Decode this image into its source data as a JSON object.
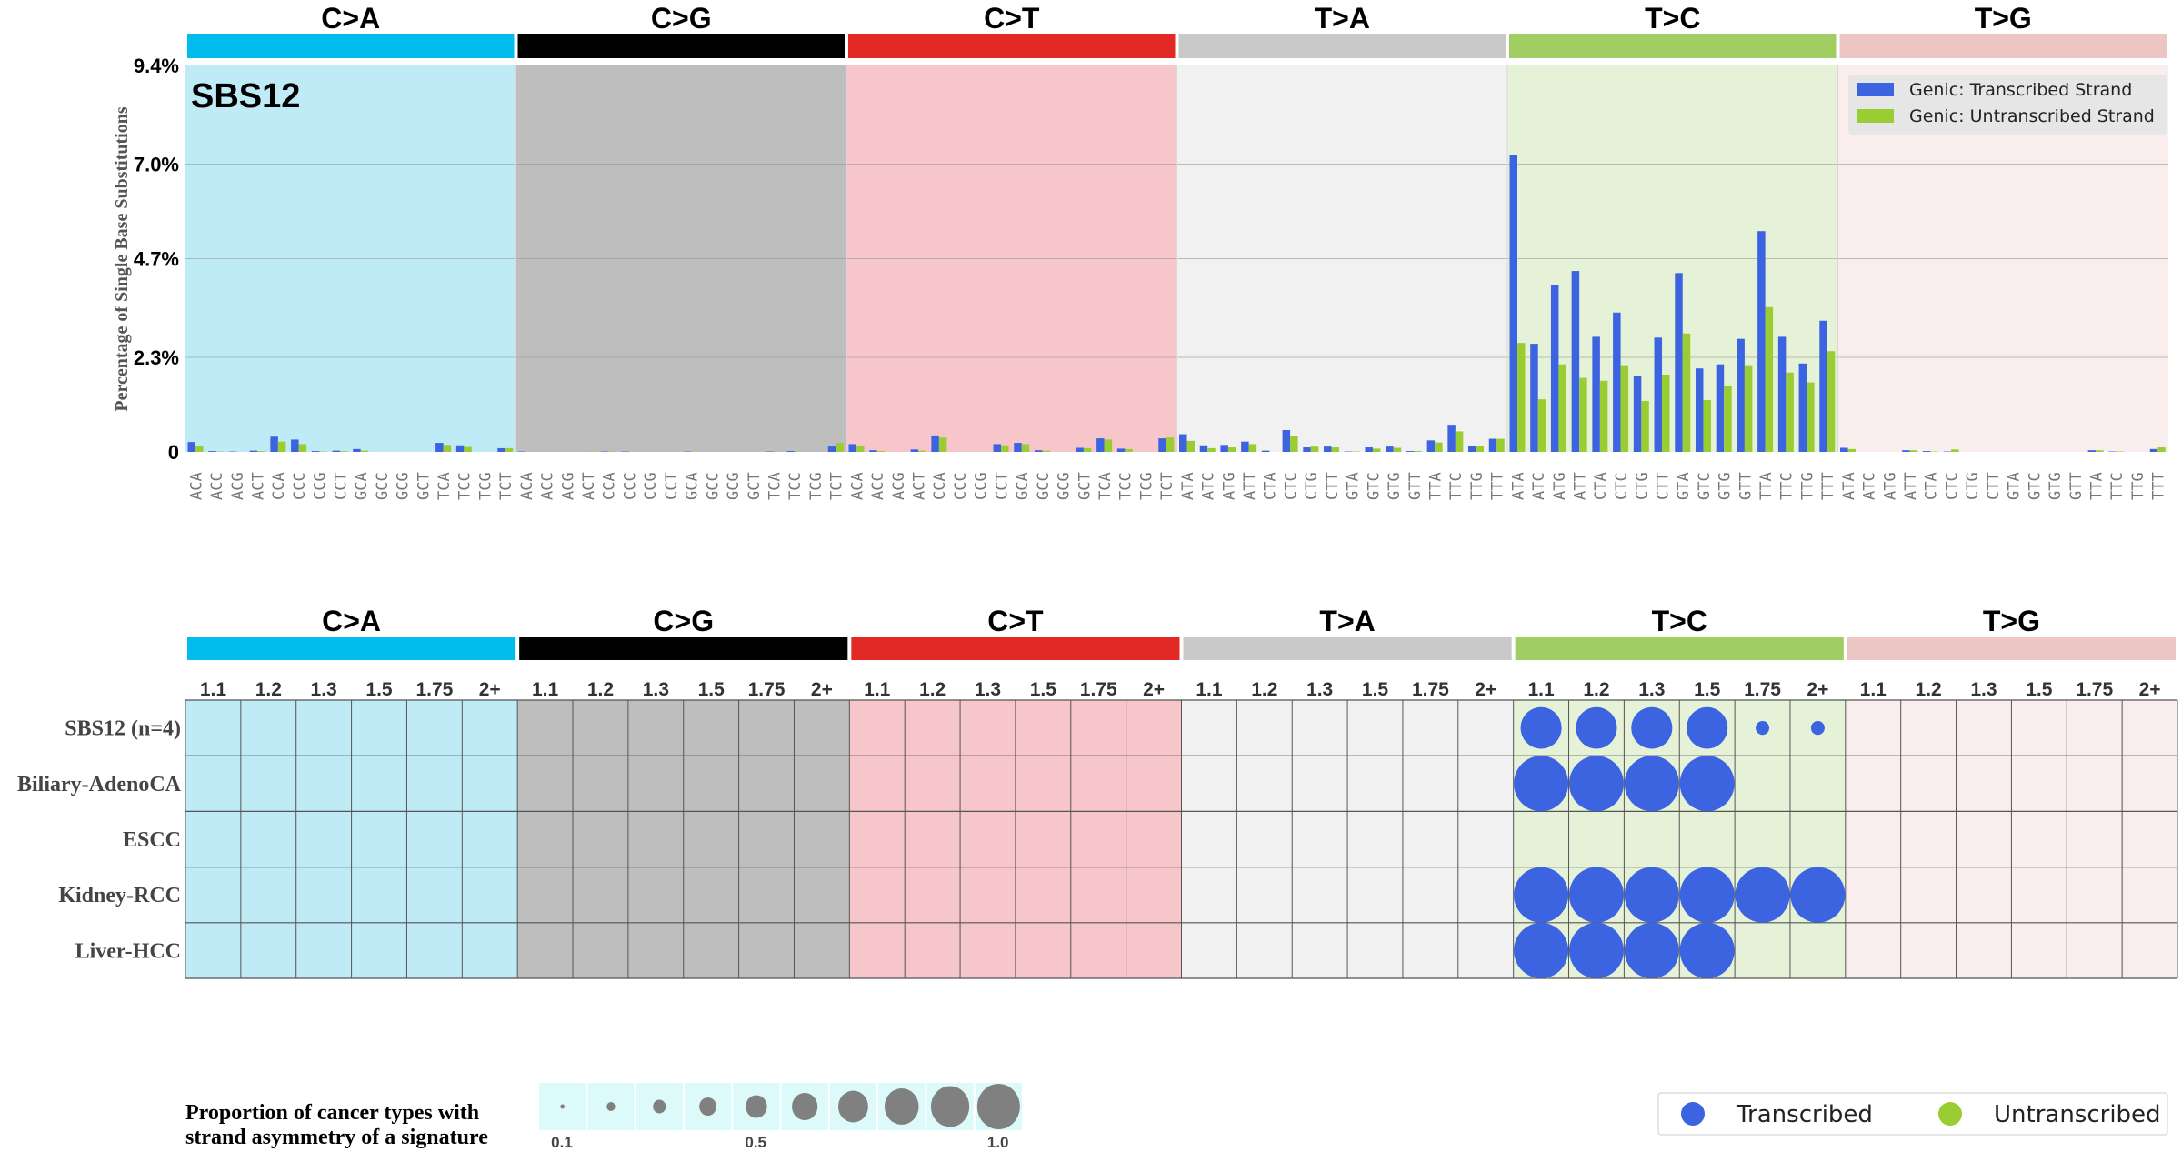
{
  "chart_data": [
    {
      "type": "bar",
      "signature_label": "SBS12",
      "ylabel": "Percentage of Single Base Substitutions",
      "yticks": [
        "0",
        "2.3%",
        "4.7%",
        "7.0%",
        "9.4%"
      ],
      "ytick_values": [
        0,
        2.3,
        4.7,
        7.0,
        9.4
      ],
      "ylim": [
        0,
        9.4
      ],
      "grid": true,
      "legend_placement": "top-right",
      "series": [
        {
          "name": "Genic: Transcribed Strand",
          "key": "transcribed",
          "color": "#3C64E0"
        },
        {
          "name": "Genic: Untranscribed Strand",
          "key": "untranscribed",
          "color": "#9ACD32"
        }
      ],
      "mutation_types": [
        {
          "name": "C>A",
          "color": "#03BCEE",
          "bg": "#BFEBF7",
          "mid_color": "#03BCEE",
          "contexts": [
            "ACA",
            "ACC",
            "ACG",
            "ACT",
            "CCA",
            "CCC",
            "CCG",
            "CCT",
            "GCA",
            "GCC",
            "GCG",
            "GCT",
            "TCA",
            "TCC",
            "TCG",
            "TCT"
          ],
          "transcribed": [
            0.24,
            0.02,
            0.01,
            0.03,
            0.37,
            0.3,
            0.02,
            0.03,
            0.07,
            0,
            0,
            0,
            0.22,
            0.16,
            0,
            0.09
          ],
          "untranscribed": [
            0.15,
            0.01,
            0,
            0.02,
            0.25,
            0.19,
            0.01,
            0.02,
            0.03,
            0,
            0,
            0,
            0.17,
            0.12,
            0,
            0.09
          ]
        },
        {
          "name": "C>G",
          "color": "#010101",
          "bg": "#BEBEBE",
          "mid_color": "#010101",
          "contexts": [
            "ACA",
            "ACC",
            "ACG",
            "ACT",
            "CCA",
            "CCC",
            "CCG",
            "CCT",
            "GCA",
            "GCC",
            "GCG",
            "GCT",
            "TCA",
            "TCC",
            "TCG",
            "TCT"
          ],
          "transcribed": [
            0.01,
            0,
            0,
            0,
            0.01,
            0.01,
            0,
            0,
            0.01,
            0,
            0,
            0,
            0.01,
            0.02,
            0,
            0.13
          ],
          "untranscribed": [
            0,
            0,
            0,
            0.01,
            0.01,
            0,
            0,
            0,
            0.01,
            0,
            0,
            0,
            0,
            0.01,
            0,
            0.22
          ]
        },
        {
          "name": "C>T",
          "color": "#E32926",
          "bg": "#F7C6CA",
          "mid_color": "#E32926",
          "contexts": [
            "ACA",
            "ACC",
            "ACG",
            "ACT",
            "CCA",
            "CCC",
            "CCG",
            "CCT",
            "GCA",
            "GCC",
            "GCG",
            "GCT",
            "TCA",
            "TCC",
            "TCG",
            "TCT"
          ],
          "transcribed": [
            0.19,
            0.04,
            0,
            0.06,
            0.4,
            0,
            0,
            0.19,
            0.22,
            0.04,
            0,
            0.1,
            0.33,
            0.08,
            0,
            0.33
          ],
          "untranscribed": [
            0.14,
            0.02,
            0,
            0.03,
            0.35,
            0,
            0,
            0.16,
            0.19,
            0.03,
            0,
            0.09,
            0.3,
            0.07,
            0,
            0.35
          ]
        },
        {
          "name": "T>A",
          "color": "#CAC9C9",
          "bg": "#F1F1F1",
          "mid_color": "#BBBBBB",
          "contexts": [
            "ATA",
            "ATC",
            "ATG",
            "ATT",
            "CTA",
            "CTC",
            "CTG",
            "CTT",
            "GTA",
            "GTC",
            "GTG",
            "GTT",
            "TTA",
            "TTC",
            "TTG",
            "TTT"
          ],
          "transcribed": [
            0.43,
            0.16,
            0.17,
            0.25,
            0.03,
            0.53,
            0.11,
            0.13,
            0.01,
            0.11,
            0.13,
            0.02,
            0.28,
            0.66,
            0.14,
            0.32
          ],
          "untranscribed": [
            0.27,
            0.09,
            0.11,
            0.19,
            0,
            0.39,
            0.13,
            0.11,
            0.01,
            0.08,
            0.1,
            0.02,
            0.23,
            0.5,
            0.15,
            0.32
          ]
        },
        {
          "name": "T>C",
          "color": "#A1CE63",
          "bg": "#E6F2D8",
          "mid_color": "#8DC63F",
          "contexts": [
            "ATA",
            "ATC",
            "ATG",
            "ATT",
            "CTA",
            "CTC",
            "CTG",
            "CTT",
            "GTA",
            "GTC",
            "GTG",
            "GTT",
            "TTA",
            "TTC",
            "TTG",
            "TTT"
          ],
          "transcribed": [
            7.21,
            2.63,
            4.07,
            4.4,
            2.8,
            3.39,
            1.84,
            2.78,
            4.35,
            2.03,
            2.13,
            2.75,
            5.37,
            2.8,
            2.15,
            3.19
          ],
          "untranscribed": [
            2.65,
            1.28,
            2.13,
            1.8,
            1.73,
            2.11,
            1.24,
            1.88,
            2.88,
            1.26,
            1.6,
            2.11,
            3.52,
            1.93,
            1.69,
            2.45
          ]
        },
        {
          "name": "T>G",
          "color": "#EBC6C4",
          "bg": "#F9EEED",
          "mid_color": "#E5B8B5",
          "contexts": [
            "ATA",
            "ATC",
            "ATG",
            "ATT",
            "CTA",
            "CTC",
            "CTG",
            "CTT",
            "GTA",
            "GTC",
            "GTG",
            "GTT",
            "TTA",
            "TTC",
            "TTG",
            "TTT"
          ],
          "transcribed": [
            0.1,
            0,
            0,
            0.04,
            0.02,
            0.01,
            0,
            0,
            0,
            0,
            0,
            0,
            0.04,
            0.01,
            0,
            0.07
          ],
          "untranscribed": [
            0.07,
            0,
            0,
            0.04,
            0.01,
            0.06,
            0,
            0,
            0,
            0,
            0,
            0,
            0.04,
            0.01,
            0,
            0.11
          ]
        }
      ]
    },
    {
      "type": "bubble-grid",
      "mutation_types": [
        "C>A",
        "C>G",
        "C>T",
        "T>A",
        "T>C",
        "T>G"
      ],
      "thresholds": [
        "1.1",
        "1.2",
        "1.3",
        "1.5",
        "1.75",
        "2+"
      ],
      "rows": [
        {
          "label": "SBS12 (n=4)",
          "values": {
            "T>C": [
              0.75,
              0.75,
              0.75,
              0.75,
              0.25,
              0.25
            ]
          },
          "strand": "transcribed"
        },
        {
          "label": "Biliary-AdenoCA",
          "values": {
            "T>C": [
              1,
              1,
              1,
              1,
              0,
              0
            ]
          },
          "strand": "transcribed"
        },
        {
          "label": "ESCC",
          "values": {},
          "strand": "transcribed"
        },
        {
          "label": "Kidney-RCC",
          "values": {
            "T>C": [
              1,
              1,
              1,
              1,
              1,
              1
            ]
          },
          "strand": "transcribed"
        },
        {
          "label": "Liver-HCC",
          "values": {
            "T>C": [
              1,
              1,
              1,
              1,
              0,
              0
            ]
          },
          "strand": "transcribed"
        }
      ],
      "size_legend": {
        "title_line1": "Proportion of cancer types with",
        "title_line2": "strand asymmetry of a signature",
        "steps": [
          0.1,
          0.2,
          0.3,
          0.4,
          0.5,
          0.6,
          0.7,
          0.8,
          0.9,
          1.0
        ],
        "labels": [
          "0.1",
          "0.5",
          "1.0"
        ],
        "circle_color": "#808080",
        "cell_bg": "#DDFAFA"
      },
      "strand_legend": [
        {
          "label": "Transcribed",
          "color": "#3C64E0"
        },
        {
          "label": "Untranscribed",
          "color": "#9ACD32"
        }
      ]
    }
  ]
}
